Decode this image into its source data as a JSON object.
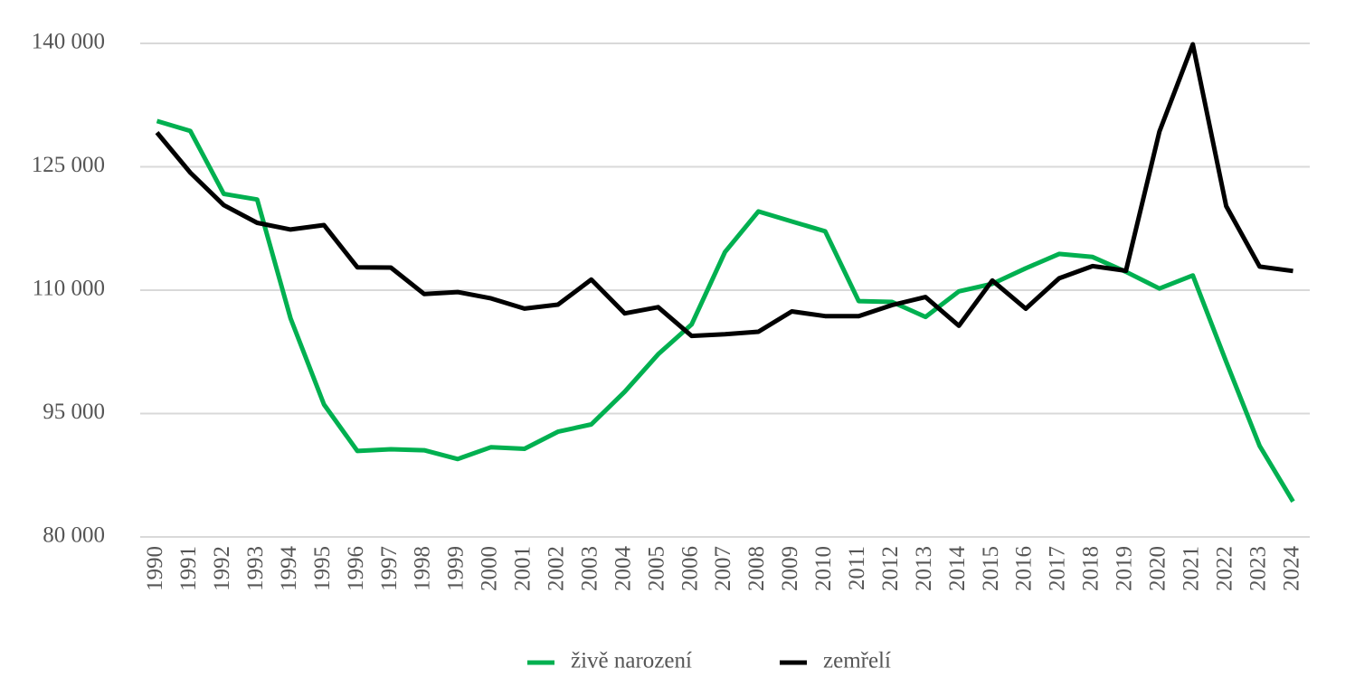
{
  "chart_data": {
    "type": "line",
    "categories": [
      "1990",
      "1991",
      "1992",
      "1993",
      "1994",
      "1995",
      "1996",
      "1997",
      "1998",
      "1999",
      "2000",
      "2001",
      "2002",
      "2003",
      "2004",
      "2005",
      "2006",
      "2007",
      "2008",
      "2009",
      "2010",
      "2011",
      "2012",
      "2013",
      "2014",
      "2015",
      "2016",
      "2017",
      "2018",
      "2019",
      "2020",
      "2021",
      "2022",
      "2023",
      "2024"
    ],
    "series": [
      {
        "name": "živě narození",
        "color": "#00b050",
        "values": [
          130564,
          129354,
          121705,
          121025,
          106579,
          96097,
          90446,
          90657,
          90535,
          89471,
          90910,
          90715,
          92786,
          93685,
          97664,
          102211,
          105831,
          114632,
          119570,
          118348,
          117153,
          108673,
          108576,
          106751,
          109860,
          110764,
          112663,
          114405,
          114036,
          112231,
          110200,
          111793,
          101299,
          91067,
          84311
        ]
      },
      {
        "name": "zemřelí",
        "color": "#000000",
        "values": [
          129166,
          124290,
          120337,
          118185,
          117373,
          117913,
          112782,
          112744,
          109527,
          109768,
          109001,
          107755,
          108243,
          111288,
          107177,
          107938,
          104441,
          104636,
          104948,
          107421,
          106844,
          106848,
          108189,
          109160,
          105665,
          111173,
          107750,
          111443,
          112920,
          112362,
          129289,
          139891,
          120219,
          112870,
          112333
        ]
      }
    ],
    "ylim": [
      80000,
      140000
    ],
    "yticks": [
      {
        "value": 80000,
        "label": "80 000"
      },
      {
        "value": 95000,
        "label": "95 000"
      },
      {
        "value": 110000,
        "label": "110 000"
      },
      {
        "value": 125000,
        "label": "125 000"
      },
      {
        "value": 140000,
        "label": "140 000"
      }
    ],
    "grid": true
  }
}
